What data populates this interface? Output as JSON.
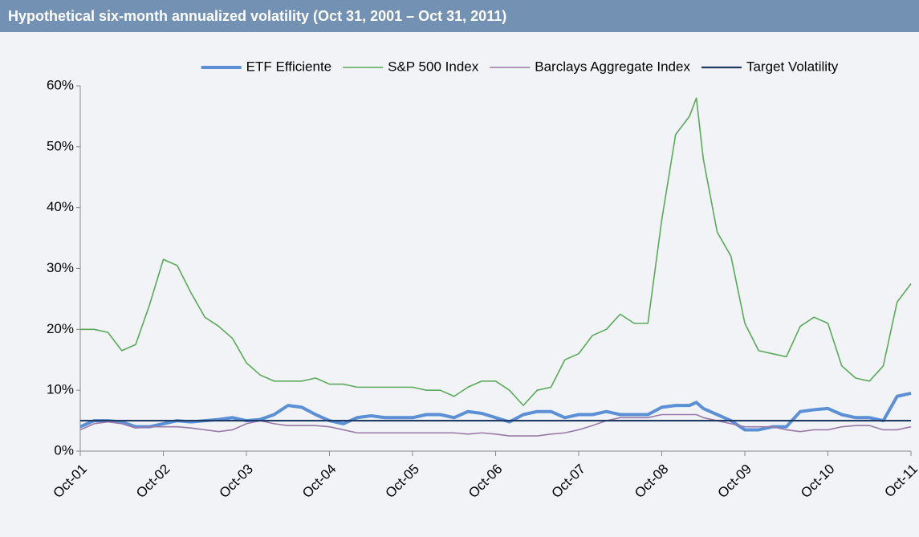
{
  "chart_data": {
    "type": "line",
    "title": "Hypothetical six-month annualized volatility (Oct 31, 2001 – Oct 31, 2011)",
    "x": [
      0,
      2,
      4,
      6,
      8,
      10,
      12,
      14,
      16,
      18,
      20,
      22,
      24,
      26,
      28,
      30,
      32,
      34,
      36,
      38,
      40,
      42,
      44,
      46,
      48,
      50,
      52,
      54,
      56,
      58,
      60,
      62,
      64,
      66,
      68,
      70,
      72,
      74,
      76,
      78,
      80,
      82,
      84,
      86,
      88,
      89,
      90,
      92,
      94,
      96,
      98,
      100,
      102,
      104,
      106,
      108,
      110,
      112,
      114,
      116,
      118,
      120
    ],
    "xlim": [
      0,
      120
    ],
    "xticks": [
      {
        "value": 0,
        "label": "Oct-01"
      },
      {
        "value": 12,
        "label": "Oct-02"
      },
      {
        "value": 24,
        "label": "Oct-03"
      },
      {
        "value": 36,
        "label": "Oct-04"
      },
      {
        "value": 48,
        "label": "Oct-05"
      },
      {
        "value": 60,
        "label": "Oct-06"
      },
      {
        "value": 72,
        "label": "Oct-07"
      },
      {
        "value": 84,
        "label": "Oct-08"
      },
      {
        "value": 96,
        "label": "Oct-09"
      },
      {
        "value": 108,
        "label": "Oct-10"
      },
      {
        "value": 120,
        "label": "Oct-11"
      }
    ],
    "ylim": [
      0,
      60
    ],
    "yticks": [
      {
        "value": 0,
        "label": "0%"
      },
      {
        "value": 10,
        "label": "10%"
      },
      {
        "value": 20,
        "label": "20%"
      },
      {
        "value": 30,
        "label": "30%"
      },
      {
        "value": 40,
        "label": "40%"
      },
      {
        "value": 50,
        "label": "50%"
      },
      {
        "value": 60,
        "label": "60%"
      }
    ],
    "grid": false,
    "legend": "top",
    "series": [
      {
        "name": "ETF Efficiente",
        "color": "#5b8fd6",
        "values": [
          4,
          5,
          5,
          4.8,
          4,
          4,
          4.5,
          5,
          4.8,
          5,
          5.2,
          5.5,
          5,
          5.2,
          6,
          7.5,
          7.2,
          6,
          5,
          4.5,
          5.5,
          5.8,
          5.5,
          5.5,
          5.5,
          6,
          6,
          5.5,
          6.5,
          6.2,
          5.5,
          4.8,
          6,
          6.5,
          6.5,
          5.5,
          6,
          6,
          6.5,
          6,
          6,
          6,
          7.2,
          7.5,
          7.5,
          8,
          7,
          6,
          5,
          3.5,
          3.5,
          4,
          4,
          6.5,
          6.8,
          7,
          6,
          5.5,
          5.5,
          5,
          9,
          9.5
        ]
      },
      {
        "name": "S&P 500 Index",
        "color": "#5aaa5a",
        "values": [
          20,
          20,
          19.5,
          16.5,
          17.5,
          24,
          31.5,
          30.5,
          26,
          22,
          20.5,
          18.5,
          14.5,
          12.5,
          11.5,
          11.5,
          11.5,
          12,
          11,
          11,
          10.5,
          10.5,
          10.5,
          10.5,
          10.5,
          10,
          10,
          9,
          10.5,
          11.5,
          11.5,
          10,
          7.5,
          10,
          10.5,
          15,
          16,
          19,
          20,
          22.5,
          21,
          21,
          38,
          52,
          55,
          58,
          48,
          36,
          32,
          21,
          16.5,
          16,
          15.5,
          20.5,
          22,
          21,
          14,
          12,
          11.5,
          14,
          24.5,
          27.5
        ]
      },
      {
        "name": "Barclays Aggregate Index",
        "color": "#9b79a8",
        "values": [
          3.5,
          4.5,
          4.8,
          4.5,
          3.8,
          4,
          4,
          4,
          3.8,
          3.5,
          3.2,
          3.5,
          4.5,
          5,
          4.5,
          4.2,
          4.2,
          4.2,
          4,
          3.5,
          3,
          3,
          3,
          3,
          3,
          3,
          3,
          3,
          2.8,
          3,
          2.8,
          2.5,
          2.5,
          2.5,
          2.8,
          3,
          3.5,
          4.2,
          5,
          5.5,
          5.5,
          5.5,
          6,
          6,
          6,
          6,
          5.5,
          5,
          4.5,
          4,
          4,
          4,
          3.5,
          3.2,
          3.5,
          3.5,
          4,
          4.2,
          4.2,
          3.5,
          3.5,
          4
        ]
      },
      {
        "name": "Target Volatility",
        "color": "#1f3b63",
        "values": [
          5,
          5,
          5,
          5,
          5,
          5,
          5,
          5,
          5,
          5,
          5,
          5,
          5,
          5,
          5,
          5,
          5,
          5,
          5,
          5,
          5,
          5,
          5,
          5,
          5,
          5,
          5,
          5,
          5,
          5,
          5,
          5,
          5,
          5,
          5,
          5,
          5,
          5,
          5,
          5,
          5,
          5,
          5,
          5,
          5,
          5,
          5,
          5,
          5,
          5,
          5,
          5,
          5,
          5,
          5,
          5,
          5,
          5,
          5,
          5,
          5,
          5
        ]
      }
    ]
  }
}
